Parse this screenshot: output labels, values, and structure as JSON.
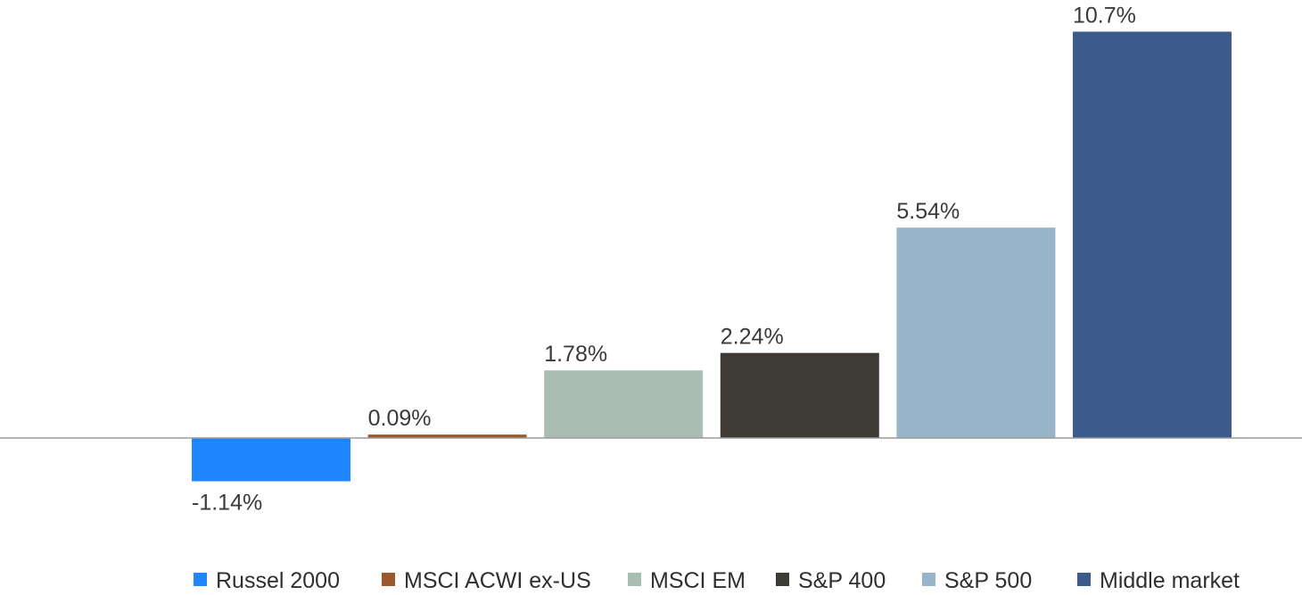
{
  "chart_data": {
    "type": "bar",
    "categories": [
      "Russel 2000",
      "MSCI ACWI ex-US",
      "MSCI EM",
      "S&P 400",
      "S&P 500",
      "Middle market"
    ],
    "values": [
      -1.14,
      0.09,
      1.78,
      2.24,
      5.54,
      10.7
    ],
    "value_labels": [
      "-1.14%",
      "0.09%",
      "1.78%",
      "2.24%",
      "5.54%",
      "10.7%"
    ],
    "colors": [
      "#1f86ff",
      "#9a5a2e",
      "#aabdb2",
      "#3e3a35",
      "#97b4c8",
      "#3c5a8a"
    ],
    "axis_color": "#9a9a9a",
    "ylim": [
      -1.14,
      10.7
    ],
    "grid": false,
    "legend_position": "bottom",
    "title": "",
    "xlabel": "",
    "ylabel": ""
  }
}
